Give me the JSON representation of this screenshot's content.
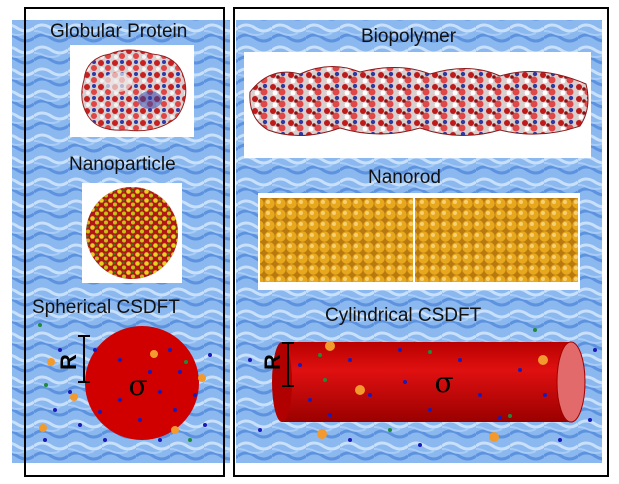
{
  "left_panel": {
    "labels": {
      "globular_protein": "Globular Protein",
      "nanoparticle": "Nanoparticle",
      "spherical_csdft": "Spherical CSDFT"
    },
    "radius_symbol": "R",
    "charge_symbol": "σ"
  },
  "right_panel": {
    "labels": {
      "biopolymer": "Biopolymer",
      "nanorod": "Nanorod",
      "cylindrical_csdft": "Cylindrical CSDFT"
    },
    "radius_symbol": "R",
    "charge_symbol": "σ"
  },
  "colors": {
    "water_light": "#9cc4f4",
    "water_dark": "#5b8fe0",
    "csdft_red": "#cc0000",
    "cap_pink": "#e26a6a",
    "ion_blue": "#1a1ab8",
    "ion_green": "#1f8a3a",
    "ion_orange": "#f29a2e",
    "gold_atom": "#e0a020",
    "pink_atom": "#e0307a"
  }
}
